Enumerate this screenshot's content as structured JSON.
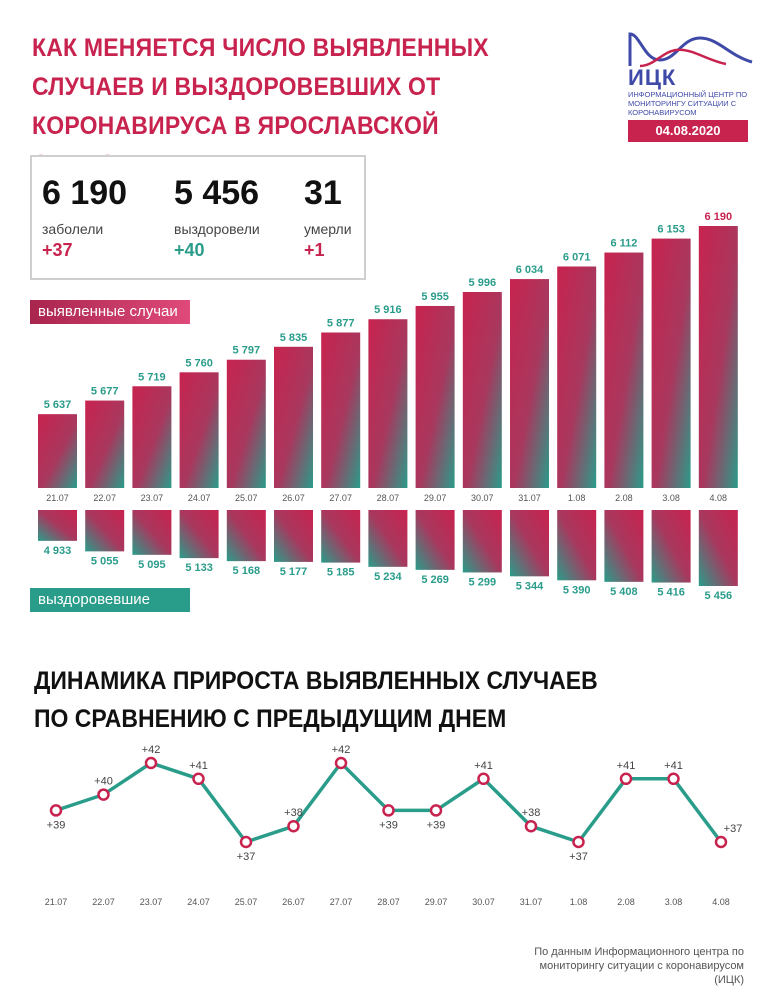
{
  "title": "КАК МЕНЯЕТСЯ ЧИСЛО ВЫЯВЛЕННЫХ СЛУЧАЕВ И ВЫЗДОРОВЕВШИХ ОТ КОРОНАВИРУСА В ЯРОСЛАВСКОЙ ОБЛАСТИ",
  "logo": {
    "name": "ИЦК",
    "subtitle": "ИНФОРМАЦИОННЫЙ ЦЕНТР ПО МОНИТОРИНГУ СИТУАЦИИ С КОРОНАВИРУСОМ",
    "icon": "wave-logo-icon"
  },
  "date": "04.08.2020",
  "stats": {
    "cases": {
      "value": "6 190",
      "label": "заболели",
      "delta": "+37"
    },
    "recovered": {
      "value": "5 456",
      "label": "выздоровели",
      "delta": "+40"
    },
    "deaths": {
      "value": "31",
      "label": "умерли",
      "delta": "+1"
    }
  },
  "legend": {
    "cases": "выявленные случаи",
    "recovered": "выздоровевшие"
  },
  "section_title": "ДИНАМИКА ПРИРОСТА ВЫЯВЛЕННЫХ СЛУЧАЕВ ПО СРАВНЕНИЮ С ПРЕДЫДУЩИМ ДНЕМ",
  "footer": "По данным Информационного центра по мониторингу ситуации с коронавирусом (ИЦК)",
  "colors": {
    "accent": "#c8234f",
    "green": "#2a9c8a",
    "logo": "#3f4aa8"
  },
  "chart_data": [
    {
      "type": "bar",
      "categories": [
        "21.07",
        "22.07",
        "23.07",
        "24.07",
        "25.07",
        "26.07",
        "27.07",
        "28.07",
        "29.07",
        "30.07",
        "31.07",
        "1.08",
        "2.08",
        "3.08",
        "4.08"
      ],
      "series": [
        {
          "name": "выявленные случаи",
          "values": [
            5637,
            5677,
            5719,
            5760,
            5797,
            5835,
            5877,
            5916,
            5955,
            5996,
            6034,
            6071,
            6112,
            6153,
            6190
          ],
          "labels": [
            "5 637",
            "5 677",
            "5 719",
            "5 760",
            "5 797",
            "5 835",
            "5 877",
            "5 916",
            "5 955",
            "5 996",
            "6 034",
            "6 071",
            "6 112",
            "6 153",
            "6 190"
          ]
        },
        {
          "name": "выздоровевшие",
          "values": [
            4933,
            5055,
            5095,
            5133,
            5168,
            5177,
            5185,
            5234,
            5269,
            5299,
            5344,
            5390,
            5408,
            5416,
            5456
          ],
          "labels": [
            "4 933",
            "5 055",
            "5 095",
            "5 133",
            "5 168",
            "5 177",
            "5 185",
            "5 234",
            "5 269",
            "5 299",
            "5 344",
            "5 390",
            "5 408",
            "5 416",
            "5 456"
          ]
        }
      ]
    },
    {
      "type": "line",
      "title": "ДИНАМИКА ПРИРОСТА ВЫЯВЛЕННЫХ СЛУЧАЕВ ПО СРАВНЕНИЮ С ПРЕДЫДУЩИМ ДНЕМ",
      "categories": [
        "21.07",
        "22.07",
        "23.07",
        "24.07",
        "25.07",
        "26.07",
        "27.07",
        "28.07",
        "29.07",
        "30.07",
        "31.07",
        "1.08",
        "2.08",
        "3.08",
        "4.08"
      ],
      "values": [
        39,
        40,
        42,
        41,
        37,
        38,
        42,
        39,
        39,
        41,
        38,
        37,
        41,
        41,
        37
      ],
      "labels": [
        "+39",
        "+40",
        "+42",
        "+41",
        "+37",
        "+38",
        "+42",
        "+39",
        "+39",
        "+41",
        "+38",
        "+37",
        "+41",
        "+41",
        "+37"
      ]
    }
  ]
}
